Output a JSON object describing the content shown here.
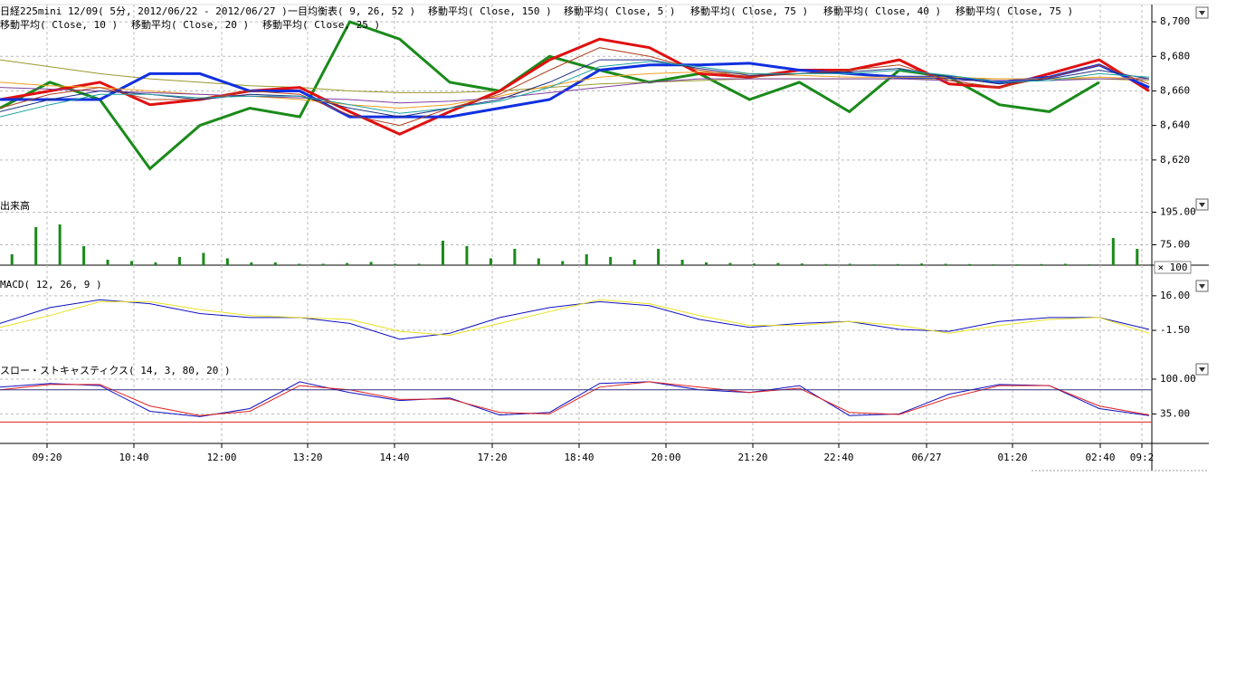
{
  "chart_data": [
    {
      "type": "line",
      "title": "日経225mini 12/09( 5分, 2012/06/22 - 2012/06/27 )",
      "ylim": [
        8600,
        8710
      ],
      "yticks": [
        {
          "value": 8620,
          "label": "8,620"
        },
        {
          "value": 8640,
          "label": "8,640"
        },
        {
          "value": 8660,
          "label": "8,660"
        },
        {
          "value": 8680,
          "label": "8,680"
        },
        {
          "value": 8700,
          "label": "8,700"
        }
      ],
      "series": [
        {
          "name": "一目均衡表( 9, 26, 52 )",
          "color": "#1a8a1a",
          "values": [
            8650,
            8665,
            8655,
            8615,
            8640,
            8650,
            8645,
            8700,
            8690,
            8665,
            8660,
            8680,
            8672,
            8665,
            8670,
            8655,
            8665,
            8648,
            8672,
            8668,
            8652,
            8648,
            8665,
            null
          ]
        },
        {
          "name": "移動平均( Close, 150 )",
          "color": "#9a9a30",
          "values": [
            8678,
            8674,
            8670,
            8667,
            8665,
            8663,
            8662,
            8660,
            8659,
            8659,
            8660,
            8662,
            8664,
            8665,
            8666,
            8667,
            8667,
            8667,
            8667,
            8667,
            8667,
            8667,
            8667,
            8666
          ]
        },
        {
          "name": "移動平均( Close, 5 )",
          "color": "#e01010",
          "values": [
            8655,
            8660,
            8665,
            8652,
            8655,
            8660,
            8662,
            8648,
            8635,
            8648,
            8660,
            8678,
            8690,
            8685,
            8670,
            8668,
            8672,
            8672,
            8678,
            8664,
            8662,
            8670,
            8678,
            8660
          ]
        },
        {
          "name": "移動平均( Close, 75 )",
          "color": "#1030e0",
          "values": [
            8655,
            8655,
            8655,
            8670,
            8670,
            8660,
            8660,
            8645,
            8645,
            8645,
            8650,
            8655,
            8672,
            8675,
            8675,
            8676,
            8672,
            8670,
            8668,
            8668,
            8665,
            8668,
            8675,
            8662
          ]
        },
        {
          "name": "移動平均( Close, 40 )",
          "color": "#f0a020",
          "values": [
            8665,
            8663,
            8662,
            8660,
            8658,
            8657,
            8655,
            8652,
            8650,
            8652,
            8657,
            8663,
            8668,
            8670,
            8671,
            8670,
            8669,
            8668,
            8668,
            8668,
            8667,
            8667,
            8668,
            8667
          ]
        },
        {
          "name": "移動平均( Close, 75 )",
          "color": "#8040a0",
          "values": [
            8662,
            8661,
            8660,
            8659,
            8658,
            8657,
            8656,
            8655,
            8653,
            8654,
            8656,
            8659,
            8662,
            8665,
            8667,
            8667,
            8667,
            8667,
            8667,
            8666,
            8666,
            8666,
            8667,
            8667
          ]
        },
        {
          "name": "移動平均( Close, 10 )",
          "color": "#b04020",
          "values": [
            8650,
            8658,
            8662,
            8655,
            8655,
            8660,
            8658,
            8646,
            8640,
            8650,
            8658,
            8672,
            8685,
            8680,
            8672,
            8668,
            8670,
            8672,
            8675,
            8666,
            8662,
            8668,
            8675,
            8664
          ]
        },
        {
          "name": "移動平均( Close, 20 )",
          "color": "#203080",
          "values": [
            8648,
            8655,
            8660,
            8658,
            8655,
            8658,
            8657,
            8650,
            8645,
            8650,
            8655,
            8665,
            8678,
            8678,
            8673,
            8669,
            8670,
            8671,
            8673,
            8668,
            8664,
            8667,
            8672,
            8667
          ]
        },
        {
          "name": "移動平均( Close, 25 )",
          "color": "#20a0a0",
          "values": [
            8645,
            8652,
            8658,
            8658,
            8656,
            8657,
            8657,
            8652,
            8647,
            8650,
            8654,
            8662,
            8674,
            8677,
            8674,
            8670,
            8670,
            8670,
            8672,
            8669,
            8665,
            8666,
            8670,
            8668
          ]
        }
      ]
    },
    {
      "type": "bar",
      "title": "出来高",
      "unit_label": "× 100",
      "color": "#1a8a1a",
      "ylim": [
        0,
        250
      ],
      "yticks": [
        {
          "value": 75,
          "label": "75.00"
        },
        {
          "value": 195,
          "label": "195.00"
        }
      ],
      "values": [
        40,
        140,
        150,
        70,
        20,
        15,
        10,
        30,
        45,
        25,
        10,
        10,
        5,
        5,
        8,
        12,
        5,
        5,
        90,
        70,
        25,
        60,
        25,
        15,
        40,
        30,
        20,
        60,
        20,
        10,
        8,
        6,
        8,
        6,
        4,
        5,
        3,
        4,
        6,
        5,
        4,
        3,
        3,
        4,
        5,
        3,
        100,
        60
      ]
    },
    {
      "type": "line",
      "title": "MACD( 12, 26, 9 )",
      "ylim": [
        -17.5,
        26
      ],
      "yticks": [
        {
          "value": -1.5,
          "label": "-1.50"
        },
        {
          "value": 16,
          "label": "16.00"
        }
      ],
      "series": [
        {
          "color": "#1010c0",
          "values": [
            2,
            10,
            14,
            12,
            7,
            5,
            5,
            2,
            -6,
            -3,
            5,
            10,
            13,
            11,
            4,
            0,
            2,
            3,
            -1,
            -2,
            3,
            5,
            5,
            -1
          ]
        },
        {
          "color": "#e8e020",
          "values": [
            0,
            6,
            13,
            13,
            9,
            6,
            5,
            4,
            -2,
            -4,
            2,
            8,
            14,
            12,
            6,
            1,
            1,
            3,
            1,
            -3,
            1,
            4,
            5,
            -3
          ]
        }
      ]
    },
    {
      "type": "line",
      "title": "スロー・ストキャスティクス( 14, 3, 80, 20 )",
      "ylim": [
        -20,
        132
      ],
      "yticks": [
        {
          "value": 35,
          "label": "35.00"
        },
        {
          "value": 100,
          "label": "100.00"
        }
      ],
      "ref_lines": [
        {
          "value": 80,
          "color": "#303080"
        },
        {
          "value": 20,
          "color": "#e02020"
        }
      ],
      "series": [
        {
          "color": "#1010c0",
          "values": [
            85,
            92,
            88,
            40,
            30,
            45,
            95,
            75,
            60,
            65,
            33,
            38,
            92,
            95,
            80,
            75,
            88,
            32,
            35,
            72,
            90,
            88,
            45,
            32
          ]
        },
        {
          "color": "#e02020",
          "values": [
            80,
            90,
            90,
            50,
            32,
            40,
            88,
            80,
            62,
            63,
            38,
            35,
            85,
            95,
            85,
            75,
            83,
            38,
            34,
            65,
            88,
            88,
            50,
            33
          ]
        }
      ]
    }
  ],
  "time_axis": [
    "09:20",
    "10:40",
    "12:00",
    "13:20",
    "14:40",
    "17:20",
    "18:40",
    "20:00",
    "21:20",
    "22:40",
    "06/27",
    "01:20",
    "02:40",
    "09:2"
  ]
}
